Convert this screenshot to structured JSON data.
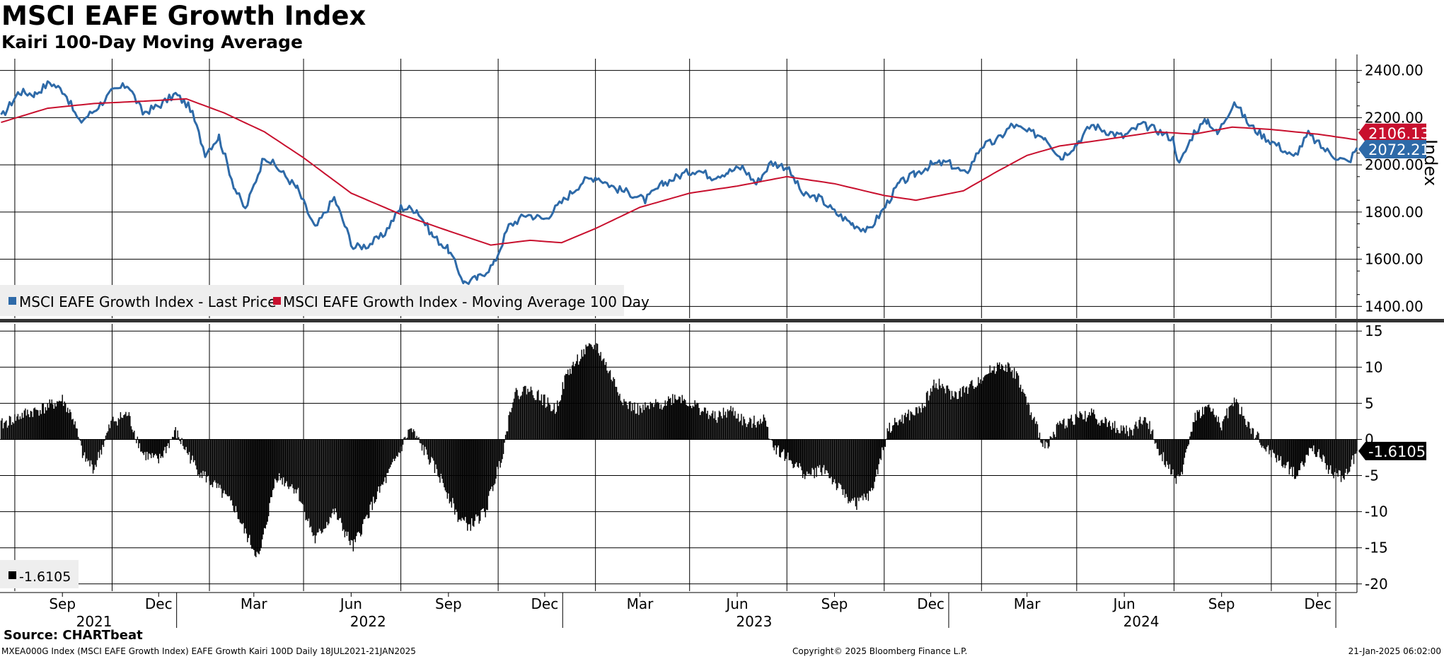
{
  "header": {
    "title": "MSCI EAFE Growth Index",
    "subtitle": "Kairi 100-Day Moving Average"
  },
  "footer": {
    "source": "Source: CHARTbeat",
    "description": "MXEA000G Index (MSCI EAFE Growth Index) EAFE Growth Kairi 100D  Daily 18JUL2021-21JAN2025",
    "copyright": "Copyright© 2025 Bloomberg Finance L.P.",
    "timestamp": "21-Jan-2025 06:02:00"
  },
  "colors": {
    "price": "#2e6aa8",
    "moving_average": "#c8102e",
    "kairi": "#000000",
    "grid": "#000000",
    "legend_bg": "#eeeeee"
  },
  "chart_data": [
    {
      "type": "line",
      "panel": "top",
      "xlabel": "",
      "ylabel": "Index",
      "ylim": [
        1350,
        2450
      ],
      "y_ticks": [
        "2400.00",
        "2200.00",
        "2000.00",
        "1800.00",
        "1600.00",
        "1400.00"
      ],
      "grid": true,
      "legend_position": "bottom-left",
      "series": [
        {
          "name": "MSCI EAFE Growth Index - Last Price",
          "last_label": "2072.21",
          "points": [
            [
              "2021-07-19",
              2200
            ],
            [
              "2021-08-05",
              2310
            ],
            [
              "2021-08-20",
              2300
            ],
            [
              "2021-09-03",
              2350
            ],
            [
              "2021-09-17",
              2310
            ],
            [
              "2021-10-01",
              2180
            ],
            [
              "2021-10-15",
              2230
            ],
            [
              "2021-11-01",
              2310
            ],
            [
              "2021-11-16",
              2340
            ],
            [
              "2021-11-30",
              2220
            ],
            [
              "2021-12-15",
              2250
            ],
            [
              "2021-12-31",
              2300
            ],
            [
              "2022-01-14",
              2240
            ],
            [
              "2022-01-28",
              2050
            ],
            [
              "2022-02-10",
              2120
            ],
            [
              "2022-02-25",
              1900
            ],
            [
              "2022-03-07",
              1810
            ],
            [
              "2022-03-25",
              2040
            ],
            [
              "2022-04-08",
              1980
            ],
            [
              "2022-04-25",
              1900
            ],
            [
              "2022-05-12",
              1730
            ],
            [
              "2022-05-30",
              1860
            ],
            [
              "2022-06-17",
              1650
            ],
            [
              "2022-07-01",
              1660
            ],
            [
              "2022-07-15",
              1700
            ],
            [
              "2022-08-01",
              1820
            ],
            [
              "2022-08-16",
              1810
            ],
            [
              "2022-08-31",
              1700
            ],
            [
              "2022-09-15",
              1640
            ],
            [
              "2022-09-30",
              1500
            ],
            [
              "2022-10-13",
              1520
            ],
            [
              "2022-10-28",
              1580
            ],
            [
              "2022-11-11",
              1740
            ],
            [
              "2022-11-28",
              1790
            ],
            [
              "2022-12-15",
              1770
            ],
            [
              "2023-01-02",
              1850
            ],
            [
              "2023-01-20",
              1930
            ],
            [
              "2023-02-02",
              1950
            ],
            [
              "2023-02-20",
              1900
            ],
            [
              "2023-03-06",
              1880
            ],
            [
              "2023-03-20",
              1850
            ],
            [
              "2023-04-06",
              1920
            ],
            [
              "2023-04-24",
              1960
            ],
            [
              "2023-05-08",
              1980
            ],
            [
              "2023-05-22",
              1950
            ],
            [
              "2023-06-06",
              1970
            ],
            [
              "2023-06-20",
              1990
            ],
            [
              "2023-07-03",
              1920
            ],
            [
              "2023-07-17",
              2010
            ],
            [
              "2023-08-01",
              1990
            ],
            [
              "2023-08-17",
              1870
            ],
            [
              "2023-09-01",
              1860
            ],
            [
              "2023-09-15",
              1800
            ],
            [
              "2023-10-02",
              1750
            ],
            [
              "2023-10-17",
              1720
            ],
            [
              "2023-10-31",
              1810
            ],
            [
              "2023-11-15",
              1920
            ],
            [
              "2023-11-30",
              1960
            ],
            [
              "2023-12-15",
              2000
            ],
            [
              "2023-12-31",
              2010
            ],
            [
              "2024-01-17",
              1960
            ],
            [
              "2024-02-01",
              2080
            ],
            [
              "2024-02-15",
              2100
            ],
            [
              "2024-03-01",
              2170
            ],
            [
              "2024-03-15",
              2140
            ],
            [
              "2024-04-01",
              2120
            ],
            [
              "2024-04-16",
              2030
            ],
            [
              "2024-05-01",
              2090
            ],
            [
              "2024-05-15",
              2170
            ],
            [
              "2024-05-31",
              2140
            ],
            [
              "2024-06-14",
              2120
            ],
            [
              "2024-07-01",
              2170
            ],
            [
              "2024-07-15",
              2150
            ],
            [
              "2024-07-31",
              2110
            ],
            [
              "2024-08-06",
              2000
            ],
            [
              "2024-08-20",
              2140
            ],
            [
              "2024-09-02",
              2190
            ],
            [
              "2024-09-11",
              2130
            ],
            [
              "2024-09-27",
              2270
            ],
            [
              "2024-10-11",
              2170
            ],
            [
              "2024-10-25",
              2120
            ],
            [
              "2024-11-08",
              2080
            ],
            [
              "2024-11-22",
              2030
            ],
            [
              "2024-12-06",
              2130
            ],
            [
              "2024-12-20",
              2070
            ],
            [
              "2025-01-03",
              2030
            ],
            [
              "2025-01-13",
              2010
            ],
            [
              "2025-01-21",
              2072.21
            ]
          ]
        },
        {
          "name": "MSCI EAFE Growth Index - Moving Average 100 Day",
          "last_label": "2106.13",
          "points": [
            [
              "2021-07-19",
              2180
            ],
            [
              "2021-09-01",
              2240
            ],
            [
              "2021-10-15",
              2260
            ],
            [
              "2021-12-01",
              2270
            ],
            [
              "2022-01-10",
              2280
            ],
            [
              "2022-02-15",
              2220
            ],
            [
              "2022-03-25",
              2140
            ],
            [
              "2022-05-01",
              2030
            ],
            [
              "2022-06-15",
              1880
            ],
            [
              "2022-08-01",
              1790
            ],
            [
              "2022-09-15",
              1720
            ],
            [
              "2022-10-25",
              1660
            ],
            [
              "2022-12-01",
              1680
            ],
            [
              "2022-12-31",
              1670
            ],
            [
              "2023-02-01",
              1730
            ],
            [
              "2023-03-15",
              1820
            ],
            [
              "2023-05-01",
              1880
            ],
            [
              "2023-06-15",
              1910
            ],
            [
              "2023-08-01",
              1950
            ],
            [
              "2023-09-15",
              1920
            ],
            [
              "2023-11-01",
              1870
            ],
            [
              "2023-12-01",
              1850
            ],
            [
              "2024-01-15",
              1890
            ],
            [
              "2024-02-15",
              1970
            ],
            [
              "2024-03-15",
              2040
            ],
            [
              "2024-04-15",
              2080
            ],
            [
              "2024-06-01",
              2110
            ],
            [
              "2024-07-15",
              2140
            ],
            [
              "2024-08-20",
              2130
            ],
            [
              "2024-09-25",
              2160
            ],
            [
              "2024-11-01",
              2150
            ],
            [
              "2024-12-15",
              2130
            ],
            [
              "2025-01-21",
              2106.13
            ]
          ]
        }
      ]
    },
    {
      "type": "bar",
      "panel": "bottom",
      "xlabel": "",
      "ylabel": "",
      "ylim": [
        -21,
        16
      ],
      "y_ticks": [
        "15",
        "10",
        "5",
        "0",
        "-5",
        "-10",
        "-15",
        "-20"
      ],
      "grid": true,
      "legend_position": "bottom-left",
      "series": [
        {
          "name": "",
          "legend_label": "-1.6105",
          "last_label": "-1.6105",
          "points": [
            [
              "2021-07-19",
              2
            ],
            [
              "2021-08-10",
              3.5
            ],
            [
              "2021-09-01",
              4.5
            ],
            [
              "2021-09-15",
              5.5
            ],
            [
              "2021-09-25",
              3
            ],
            [
              "2021-10-05",
              -2.5
            ],
            [
              "2021-10-15",
              -4
            ],
            [
              "2021-11-01",
              2.5
            ],
            [
              "2021-11-16",
              3.5
            ],
            [
              "2021-11-30",
              -2
            ],
            [
              "2021-12-15",
              -3
            ],
            [
              "2021-12-31",
              1
            ],
            [
              "2022-01-20",
              -4
            ],
            [
              "2022-02-10",
              -7
            ],
            [
              "2022-02-25",
              -9.5
            ],
            [
              "2022-03-07",
              -13
            ],
            [
              "2022-03-20",
              -16.5
            ],
            [
              "2022-04-05",
              -5
            ],
            [
              "2022-04-25",
              -7
            ],
            [
              "2022-05-12",
              -14
            ],
            [
              "2022-05-30",
              -10
            ],
            [
              "2022-06-17",
              -15
            ],
            [
              "2022-07-05",
              -9
            ],
            [
              "2022-07-20",
              -5
            ],
            [
              "2022-08-10",
              1.5
            ],
            [
              "2022-08-25",
              -2
            ],
            [
              "2022-09-10",
              -6
            ],
            [
              "2022-09-25",
              -11
            ],
            [
              "2022-10-05",
              -12
            ],
            [
              "2022-10-20",
              -10
            ],
            [
              "2022-11-05",
              -2
            ],
            [
              "2022-11-15",
              6
            ],
            [
              "2022-11-28",
              7
            ],
            [
              "2022-12-10",
              6
            ],
            [
              "2022-12-25",
              4
            ],
            [
              "2023-01-05",
              9
            ],
            [
              "2023-01-20",
              12
            ],
            [
              "2023-02-02",
              13
            ],
            [
              "2023-02-15",
              9
            ],
            [
              "2023-03-01",
              5
            ],
            [
              "2023-03-15",
              4
            ],
            [
              "2023-04-05",
              5
            ],
            [
              "2023-04-20",
              6
            ],
            [
              "2023-05-08",
              4.5
            ],
            [
              "2023-05-25",
              3
            ],
            [
              "2023-06-10",
              4
            ],
            [
              "2023-06-25",
              2
            ],
            [
              "2023-07-10",
              3
            ],
            [
              "2023-07-20",
              -1
            ],
            [
              "2023-08-05",
              -3
            ],
            [
              "2023-08-20",
              -5
            ],
            [
              "2023-09-05",
              -4
            ],
            [
              "2023-09-20",
              -7
            ],
            [
              "2023-10-05",
              -9
            ],
            [
              "2023-10-20",
              -7.5
            ],
            [
              "2023-11-05",
              1.5
            ],
            [
              "2023-11-20",
              3
            ],
            [
              "2023-12-05",
              4
            ],
            [
              "2023-12-20",
              8
            ],
            [
              "2024-01-05",
              6
            ],
            [
              "2024-01-20",
              7
            ],
            [
              "2024-02-05",
              9
            ],
            [
              "2024-02-20",
              10.5
            ],
            [
              "2024-03-05",
              9
            ],
            [
              "2024-03-20",
              3
            ],
            [
              "2024-04-01",
              -1
            ],
            [
              "2024-04-15",
              2
            ],
            [
              "2024-05-01",
              3
            ],
            [
              "2024-05-15",
              3.5
            ],
            [
              "2024-06-01",
              2
            ],
            [
              "2024-06-20",
              1
            ],
            [
              "2024-07-05",
              3
            ],
            [
              "2024-07-20",
              -2
            ],
            [
              "2024-08-06",
              -6
            ],
            [
              "2024-08-20",
              3
            ],
            [
              "2024-09-02",
              4.5
            ],
            [
              "2024-09-15",
              2
            ],
            [
              "2024-09-27",
              5.5
            ],
            [
              "2024-10-10",
              2
            ],
            [
              "2024-10-25",
              -1
            ],
            [
              "2024-11-10",
              -3
            ],
            [
              "2024-11-25",
              -5
            ],
            [
              "2024-12-10",
              -1
            ],
            [
              "2024-12-25",
              -4
            ],
            [
              "2025-01-08",
              -5.5
            ],
            [
              "2025-01-21",
              -1.6105
            ]
          ]
        }
      ]
    }
  ],
  "x_axis": {
    "months": [
      {
        "label": "Sep",
        "date": "2021-09-15"
      },
      {
        "label": "Dec",
        "date": "2021-12-15"
      },
      {
        "label": "Mar",
        "date": "2022-03-15"
      },
      {
        "label": "Jun",
        "date": "2022-06-15"
      },
      {
        "label": "Sep",
        "date": "2022-09-15"
      },
      {
        "label": "Dec",
        "date": "2022-12-15"
      },
      {
        "label": "Mar",
        "date": "2023-03-15"
      },
      {
        "label": "Jun",
        "date": "2023-06-15"
      },
      {
        "label": "Sep",
        "date": "2023-09-15"
      },
      {
        "label": "Dec",
        "date": "2023-12-15"
      },
      {
        "label": "Mar",
        "date": "2024-03-15"
      },
      {
        "label": "Jun",
        "date": "2024-06-15"
      },
      {
        "label": "Sep",
        "date": "2024-09-15"
      },
      {
        "label": "Dec",
        "date": "2024-12-15"
      }
    ],
    "years": [
      {
        "label": "2021",
        "date": "2021-10-15"
      },
      {
        "label": "2022",
        "date": "2022-07-01"
      },
      {
        "label": "2023",
        "date": "2023-07-01"
      },
      {
        "label": "2024",
        "date": "2024-07-01"
      }
    ],
    "year_dividers": [
      "2022-01-01",
      "2023-01-01",
      "2024-01-01",
      "2025-01-01"
    ],
    "gridlines": [
      "2021-08-01",
      "2021-11-01",
      "2022-02-01",
      "2022-05-01",
      "2022-08-01",
      "2022-11-01",
      "2023-02-01",
      "2023-05-01",
      "2023-08-01",
      "2023-11-01",
      "2024-02-01",
      "2024-05-01",
      "2024-08-01",
      "2024-11-01",
      "2025-01-01"
    ],
    "start": "2021-07-18",
    "end": "2025-01-21"
  }
}
